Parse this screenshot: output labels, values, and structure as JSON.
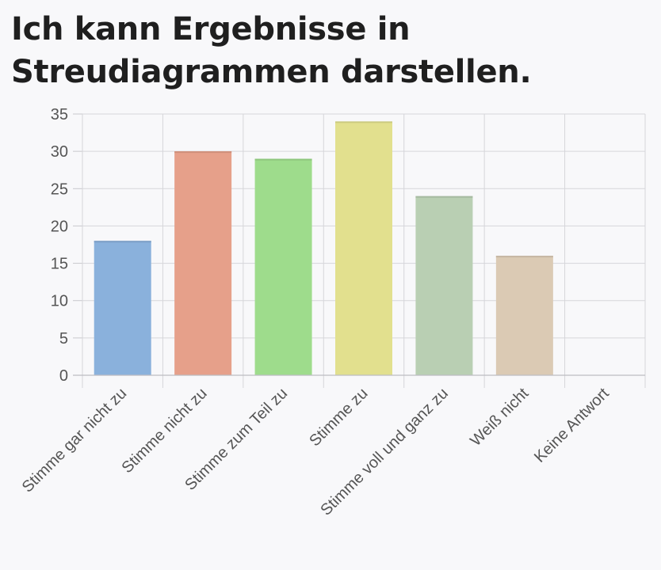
{
  "title": "Ich kann Ergebnisse in Streudiagrammen darstellen.",
  "chart_data": {
    "type": "bar",
    "title": "Ich kann Ergebnisse in Streudiagrammen darstellen.",
    "xlabel": "",
    "ylabel": "",
    "categories": [
      "Stimme gar nicht zu",
      "Stimme nicht zu",
      "Stimme zum Teil zu",
      "Stimme zu",
      "Stimme voll und ganz zu",
      "Weiß nicht",
      "Keine Antwort"
    ],
    "values": [
      18,
      30,
      29,
      34,
      24,
      16,
      0
    ],
    "colors": [
      "#8ab1dc",
      "#e6a08a",
      "#9edc8c",
      "#e2e08e",
      "#b9cfb3",
      "#dbcab4",
      "#cccccc"
    ],
    "ylim": [
      0,
      35
    ],
    "yticks": [
      0,
      5,
      10,
      15,
      20,
      25,
      30,
      35
    ],
    "grid": true,
    "legend": "none"
  }
}
